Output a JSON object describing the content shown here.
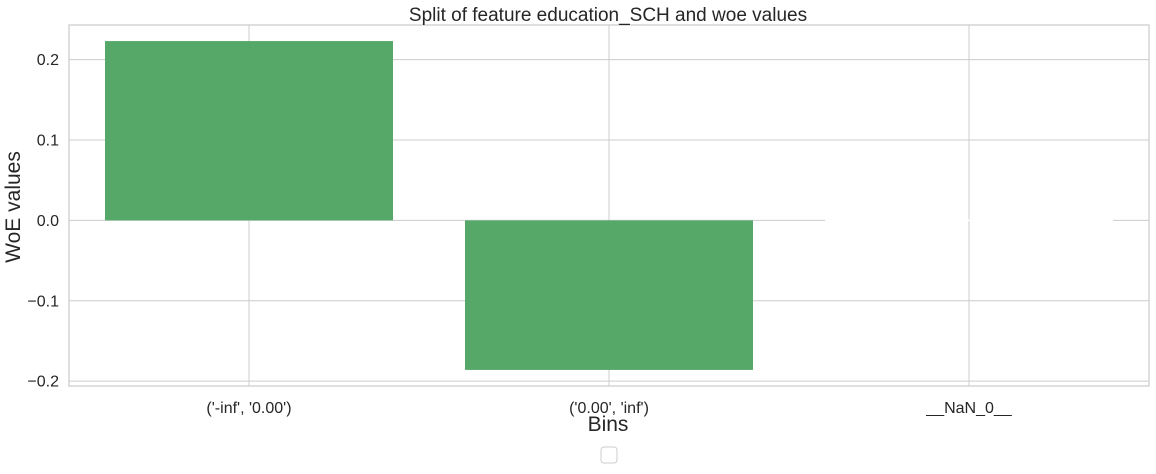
{
  "chart_data": {
    "type": "bar",
    "title": "Split of feature education_SCH and woe values",
    "xlabel": "Bins",
    "ylabel": "WoE values",
    "categories": [
      "('-inf', '0.00')",
      "('0.00', 'inf')",
      "__NaN_0__"
    ],
    "values": [
      0.223,
      -0.186,
      0.0
    ],
    "ylim": [
      -0.206,
      0.243
    ],
    "yticks": [
      -0.2,
      -0.1,
      0.0,
      0.1,
      0.2
    ],
    "ytick_labels": [
      "−0.2",
      "−0.1",
      "0.0",
      "0.1",
      "0.2"
    ],
    "grid": true,
    "legend": "bottom-center, empty",
    "bar_color": "#55a868",
    "grid_color": "#cccccc",
    "background": "#ffffff"
  }
}
